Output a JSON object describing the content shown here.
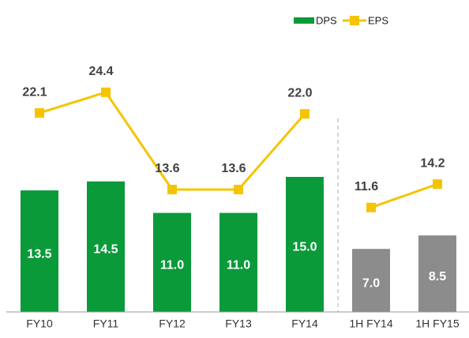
{
  "chart_data": {
    "type": "bar-line",
    "categories": [
      "FY10",
      "FY11",
      "FY12",
      "FY13",
      "FY14",
      "1H FY14",
      "1H FY15"
    ],
    "series": [
      {
        "name": "DPS",
        "type": "bar",
        "color": "#0a9a3a",
        "colors": [
          "#0a9a3a",
          "#0a9a3a",
          "#0a9a3a",
          "#0a9a3a",
          "#0a9a3a",
          "#8c8c8c",
          "#8c8c8c"
        ],
        "values": [
          13.5,
          14.5,
          11.0,
          11.0,
          15.0,
          7.0,
          8.5
        ],
        "value_labels": [
          "13.5",
          "14.5",
          "11.0",
          "11.0",
          "15.0",
          "7.0",
          "8.5"
        ]
      },
      {
        "name": "EPS",
        "type": "line",
        "color": "#f5c400",
        "values": [
          22.1,
          24.4,
          13.6,
          13.6,
          22.0,
          11.6,
          14.2
        ],
        "value_labels": [
          "22.1",
          "24.4",
          "13.6",
          "13.6",
          "22.0",
          "11.6",
          "14.2"
        ]
      }
    ],
    "divider_after": 4,
    "ylim": [
      0,
      30
    ],
    "legend": "top-right"
  }
}
